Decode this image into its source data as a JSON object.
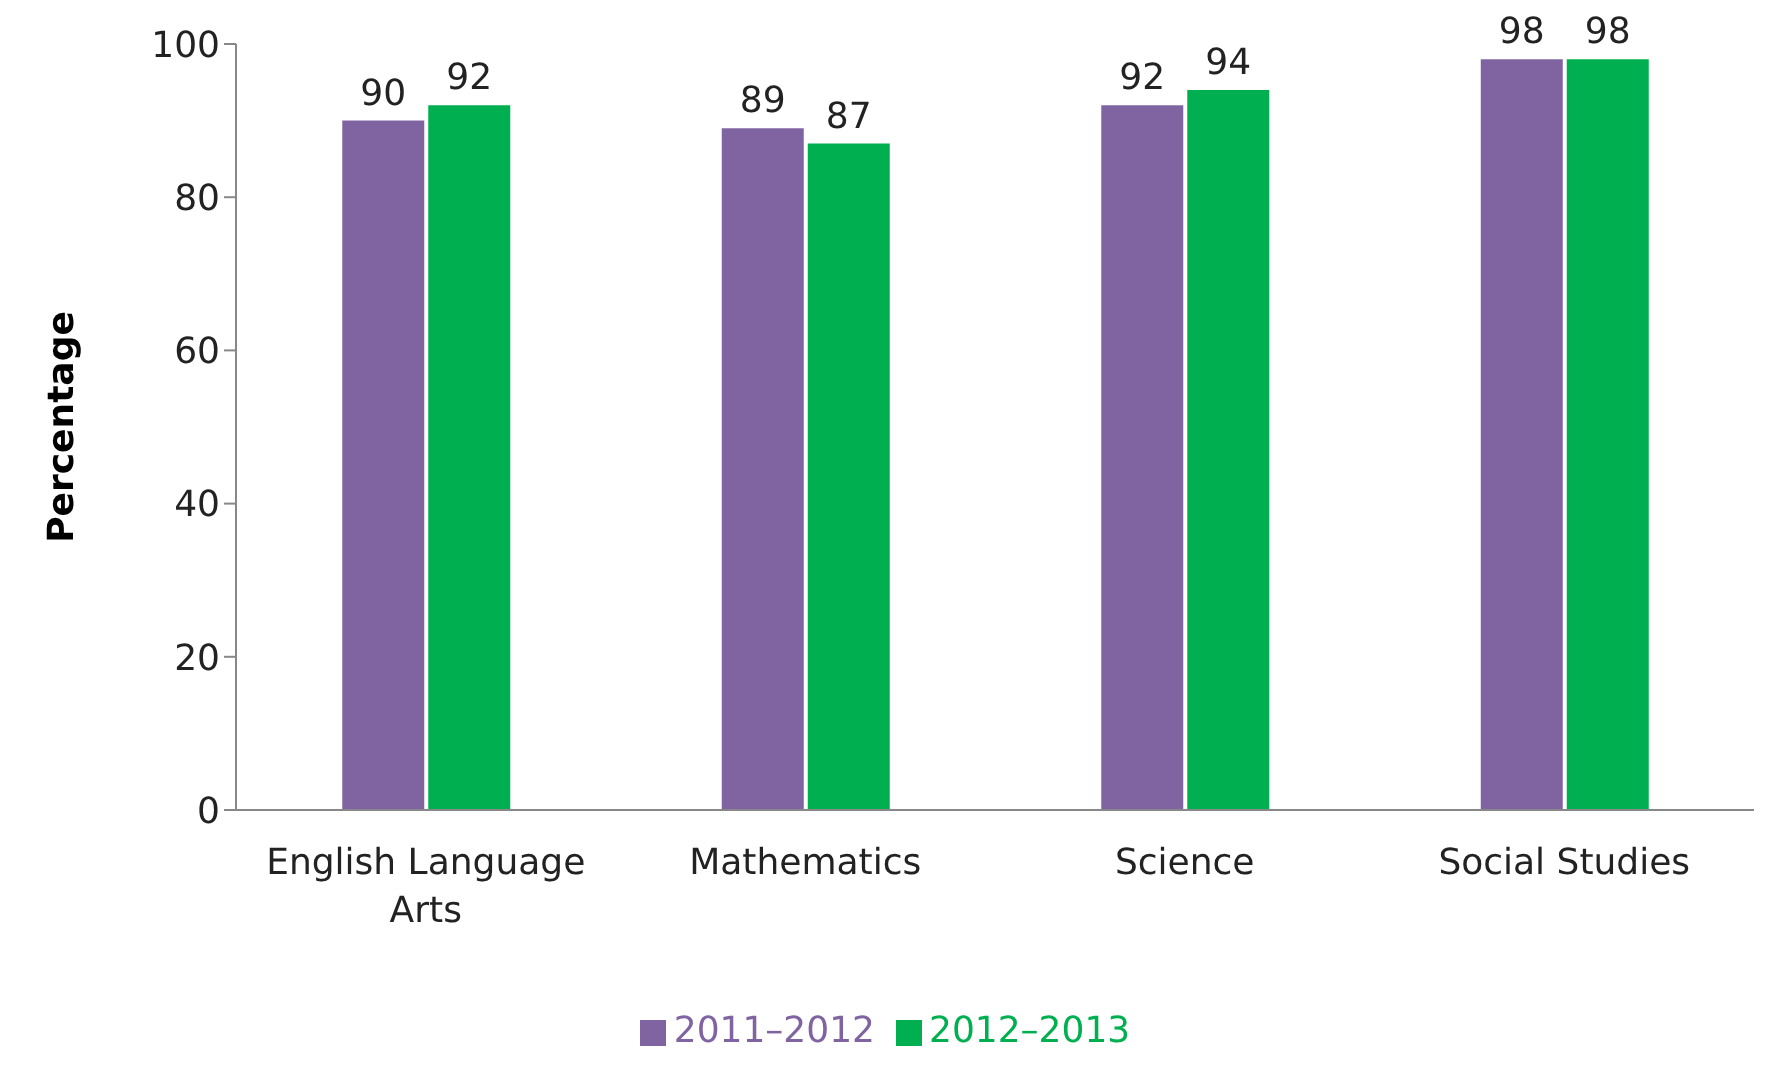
{
  "chart_data": {
    "type": "bar",
    "ylabel": "Percentage",
    "categories": [
      "English Language Arts",
      "Mathematics",
      "Science",
      "Social Studies"
    ],
    "series": [
      {
        "name": "2011–2012",
        "color": "#8064a2",
        "values": [
          90,
          89,
          92,
          98
        ]
      },
      {
        "name": "2012–2013",
        "color": "#00b050",
        "values": [
          92,
          87,
          94,
          98
        ]
      }
    ],
    "ylim": [
      0,
      100
    ],
    "yticks": [
      0,
      20,
      40,
      60,
      80,
      100
    ],
    "grid": false,
    "legend": "bottom",
    "data_labels": true
  }
}
